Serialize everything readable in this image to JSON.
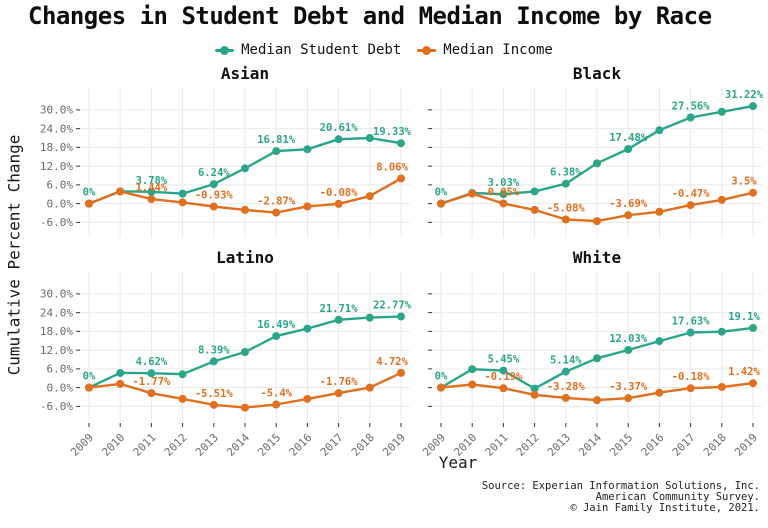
{
  "title": "Changes in Student Debt and Median Income by Race",
  "legend": [
    {
      "label": "Median Student Debt",
      "color": "#2aa58a"
    },
    {
      "label": "Median Income",
      "color": "#e06f1f"
    }
  ],
  "source_lines": [
    "Source: Experian Information Solutions, Inc.",
    "American Community Survey.",
    "© Jain Family Institute, 2021."
  ],
  "chart_data": {
    "type": "line",
    "title": "Changes in Student Debt and Median Income by Race",
    "xlabel": "Year",
    "ylabel": "Cumulative Percent Change",
    "x": [
      2009,
      2010,
      2011,
      2012,
      2013,
      2014,
      2015,
      2016,
      2017,
      2018,
      2019
    ],
    "ylim": [
      -11,
      37
    ],
    "grid": true,
    "legend_position": "top",
    "y_ticks": [
      {
        "value": 30,
        "label": "30.0%"
      },
      {
        "value": 24,
        "label": "24.0%"
      },
      {
        "value": 18,
        "label": "18.0%"
      },
      {
        "value": 12,
        "label": "12.0%"
      },
      {
        "value": 6,
        "label": "6.0%"
      },
      {
        "value": 0,
        "label": "0.0%"
      },
      {
        "value": -6,
        "label": "-6.0%"
      }
    ],
    "series_names": [
      "Median Student Debt",
      "Median Income"
    ],
    "colors": {
      "debt": "#2aa58a",
      "income": "#e06f1f"
    },
    "label_years": [
      2009,
      2011,
      2013,
      2015,
      2017,
      2019
    ],
    "facets": [
      {
        "name": "Asian",
        "debt": [
          0,
          3.9,
          3.78,
          3.2,
          6.24,
          11.3,
          16.81,
          17.4,
          20.61,
          21.0,
          19.33
        ],
        "income": [
          0,
          3.9,
          1.44,
          0.4,
          -0.93,
          -2.0,
          -2.87,
          -0.9,
          -0.08,
          2.4,
          8.06
        ],
        "debt_labels": [
          "0%",
          "3.78%",
          "6.24%",
          "16.81%",
          "20.61%",
          "19.33%"
        ],
        "income_labels": [
          null,
          "1.44%",
          "-0.93%",
          "-2.87%",
          "-0.08%",
          "8.06%"
        ]
      },
      {
        "name": "Black",
        "debt": [
          0,
          3.4,
          3.03,
          3.9,
          6.38,
          12.9,
          17.48,
          23.5,
          27.56,
          29.4,
          31.22
        ],
        "income": [
          0,
          3.2,
          0.05,
          -2.0,
          -5.08,
          -5.6,
          -3.69,
          -2.6,
          -0.47,
          1.2,
          3.5
        ],
        "debt_labels": [
          "0%",
          "3.03%",
          "6.38%",
          "17.48%",
          "27.56%",
          "31.22%"
        ],
        "income_labels": [
          null,
          "0.05%",
          "-5.08%",
          "-3.69%",
          "-0.47%",
          "3.5%"
        ]
      },
      {
        "name": "Latino",
        "debt": [
          0,
          4.7,
          4.62,
          4.3,
          8.39,
          11.4,
          16.49,
          18.9,
          21.71,
          22.4,
          22.77
        ],
        "income": [
          0,
          1.2,
          -1.77,
          -3.6,
          -5.51,
          -6.4,
          -5.4,
          -3.6,
          -1.76,
          0.0,
          4.72
        ],
        "debt_labels": [
          "0%",
          "4.62%",
          "8.39%",
          "16.49%",
          "21.71%",
          "22.77%"
        ],
        "income_labels": [
          null,
          "-1.77%",
          "-5.51%",
          "-5.4%",
          "-1.76%",
          "4.72%"
        ]
      },
      {
        "name": "White",
        "debt": [
          0,
          5.9,
          5.45,
          -0.3,
          5.14,
          9.4,
          12.03,
          14.9,
          17.63,
          17.9,
          19.1
        ],
        "income": [
          0,
          1.0,
          -0.19,
          -2.3,
          -3.28,
          -4.0,
          -3.37,
          -1.6,
          -0.18,
          0.2,
          1.42
        ],
        "debt_labels": [
          "0%",
          "5.45%",
          "5.14%",
          "12.03%",
          "17.63%",
          "19.1%"
        ],
        "income_labels": [
          null,
          "-0.19%",
          "-3.28%",
          "-3.37%",
          "-0.18%",
          "1.42%"
        ]
      }
    ]
  }
}
